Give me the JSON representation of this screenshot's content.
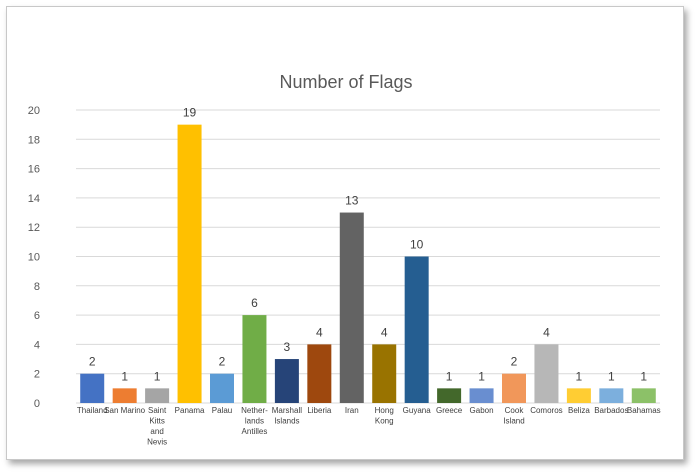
{
  "chart_data": {
    "type": "bar",
    "title": "Number of Flags",
    "xlabel": "",
    "ylabel": "",
    "ylim": [
      0,
      20
    ],
    "yticks": [
      0,
      2,
      4,
      6,
      8,
      10,
      12,
      14,
      16,
      18,
      20
    ],
    "grid": true,
    "legend": "none",
    "categories": [
      "Thailand",
      "San Marino",
      "Saint Kitts and Nevis",
      "Panama",
      "Palau",
      "Nether-lands Antilles",
      "Marshall Islands",
      "Liberia",
      "Iran",
      "Hong Kong",
      "Guyana",
      "Greece",
      "Gabon",
      "Cook Island",
      "Comoros",
      "Beliza",
      "Barbados",
      "Bahamas"
    ],
    "category_lines": [
      [
        "Thailand"
      ],
      [
        "San Marino"
      ],
      [
        "Saint",
        "Kitts",
        "and",
        "Nevis"
      ],
      [
        "Panama"
      ],
      [
        "Palau"
      ],
      [
        "Nether-",
        "lands",
        "Antilles"
      ],
      [
        "Marshall",
        "Islands"
      ],
      [
        "Liberia"
      ],
      [
        "Iran"
      ],
      [
        "Hong",
        "Kong"
      ],
      [
        "Guyana"
      ],
      [
        "Greece"
      ],
      [
        "Gabon"
      ],
      [
        "Cook",
        "Island"
      ],
      [
        "Comoros"
      ],
      [
        "Beliza"
      ],
      [
        "Barbados"
      ],
      [
        "Bahamas"
      ]
    ],
    "values": [
      2,
      1,
      1,
      19,
      2,
      6,
      3,
      4,
      13,
      4,
      10,
      1,
      1,
      2,
      4,
      1,
      1,
      1
    ],
    "colors": [
      "#4472C4",
      "#ED7D31",
      "#A5A5A5",
      "#FFC000",
      "#5B9BD5",
      "#70AD47",
      "#264478",
      "#9E480E",
      "#636363",
      "#997300",
      "#255E91",
      "#43682B",
      "#698ED0",
      "#F1975A",
      "#B7B7B7",
      "#FFCD33",
      "#7CAFDD",
      "#8CC168"
    ]
  }
}
